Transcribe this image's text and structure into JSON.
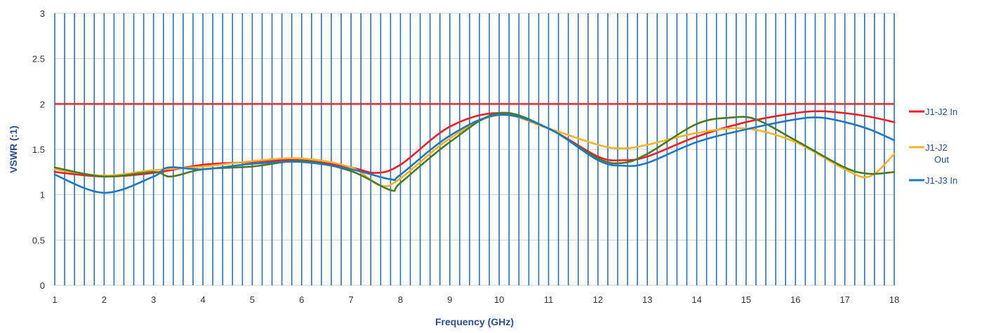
{
  "chart_data": {
    "type": "line",
    "xlabel": "Frequency (GHz)",
    "ylabel": "VSWR (:1)",
    "xlim": [
      1,
      18
    ],
    "ylim": [
      0,
      3
    ],
    "xticks": [
      "1",
      "2",
      "3",
      "4",
      "5",
      "6",
      "7",
      "8",
      "9",
      "10",
      "11",
      "12",
      "13",
      "14",
      "15",
      "16",
      "17",
      "18"
    ],
    "yticks": [
      "0",
      "0.5",
      "1",
      "1.5",
      "2",
      "2.5",
      "3"
    ],
    "dense_vertical_grid_step": 0.2,
    "grid_color": "#2e6fb5",
    "legend_position": "right",
    "legend": [
      {
        "label_lines": [
          "J1-J2 In"
        ],
        "color": "#e8202a"
      },
      {
        "label_lines": [
          "J1-J2",
          "Out"
        ],
        "color": "#f5b32a"
      },
      {
        "label_lines": [
          "J1-J3 In"
        ],
        "color": "#1f77c0"
      }
    ],
    "series": [
      {
        "name": "J1-J2 In",
        "color": "#e8202a",
        "x": [
          1,
          2,
          3,
          4,
          5,
          6,
          7,
          7.5,
          8,
          9,
          10,
          11,
          12,
          12.5,
          13,
          14,
          15,
          16,
          16.5,
          17,
          17.5,
          18
        ],
        "y": [
          1.25,
          1.2,
          1.24,
          1.33,
          1.36,
          1.38,
          1.3,
          1.24,
          1.33,
          1.75,
          1.9,
          1.73,
          1.42,
          1.38,
          1.42,
          1.64,
          1.8,
          1.9,
          1.92,
          1.9,
          1.86,
          1.8
        ]
      },
      {
        "name": "J1-J2 Out",
        "color": "#f5b32a",
        "x": [
          1,
          2,
          3,
          4,
          5,
          6,
          7,
          7.6,
          8,
          9,
          10,
          11,
          12,
          12.5,
          13,
          14,
          15,
          16,
          17,
          17.5,
          18
        ],
        "y": [
          1.28,
          1.21,
          1.27,
          1.31,
          1.37,
          1.4,
          1.3,
          1.1,
          1.18,
          1.62,
          1.88,
          1.73,
          1.55,
          1.51,
          1.55,
          1.68,
          1.73,
          1.58,
          1.28,
          1.2,
          1.45
        ]
      },
      {
        "name": "",
        "color": "#4a7a23",
        "x": [
          1,
          2,
          3,
          3.35,
          4,
          5,
          6,
          7,
          7.8,
          8,
          9,
          10,
          11,
          12,
          12.5,
          13,
          14,
          14.7,
          15.2,
          16,
          17,
          17.5,
          18
        ],
        "y": [
          1.3,
          1.2,
          1.25,
          1.2,
          1.28,
          1.31,
          1.37,
          1.26,
          1.05,
          1.13,
          1.58,
          1.9,
          1.73,
          1.4,
          1.35,
          1.45,
          1.78,
          1.85,
          1.83,
          1.6,
          1.3,
          1.23,
          1.25
        ]
      },
      {
        "name": "J1-J3 In",
        "color": "#1f77c0",
        "x": [
          1,
          2,
          3,
          3.3,
          4,
          5,
          6,
          7,
          7.8,
          8,
          9,
          10,
          11,
          12,
          12.5,
          13,
          14,
          15,
          16,
          16.5,
          17,
          17.5,
          18
        ],
        "y": [
          1.22,
          1.02,
          1.2,
          1.3,
          1.28,
          1.34,
          1.36,
          1.28,
          1.17,
          1.22,
          1.65,
          1.88,
          1.73,
          1.38,
          1.32,
          1.35,
          1.58,
          1.72,
          1.83,
          1.85,
          1.8,
          1.72,
          1.6
        ]
      }
    ]
  }
}
